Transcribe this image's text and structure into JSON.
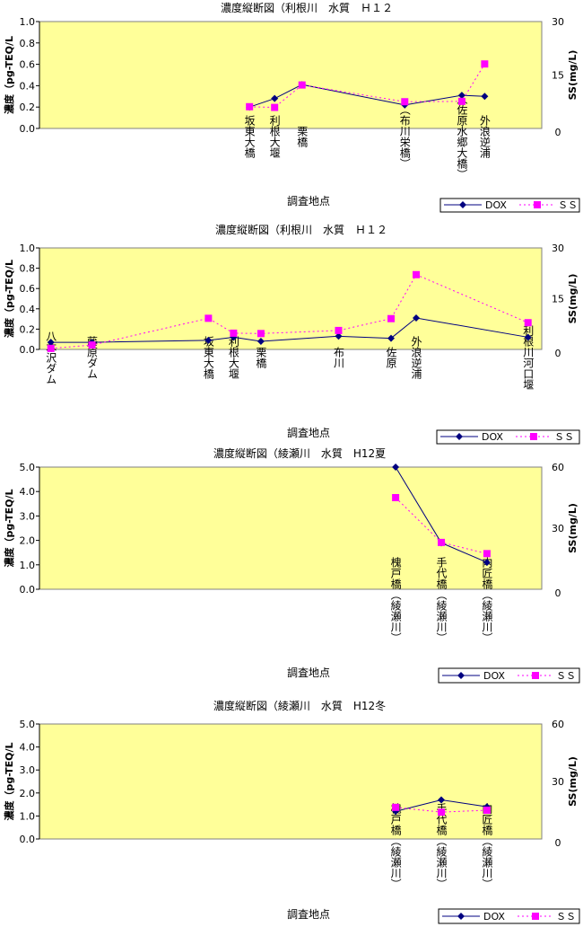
{
  "chart_data": [
    {
      "type": "line",
      "title": "濃度縦断図（利根川　水質　Ｈ１２",
      "xlabel": "調査地点",
      "ylabel": "濃度（pg-TEQ/L",
      "y2label": "SS(mg/L)",
      "ylim": [
        0,
        1.0
      ],
      "yticks": [
        "0.0",
        "0.2",
        "0.4",
        "0.6",
        "0.8",
        "1.0"
      ],
      "y2lim": [
        0,
        30
      ],
      "y2ticks": [
        "0",
        "15",
        "30"
      ],
      "plot_background": "#ffff99",
      "x": [
        9.7,
        10.8,
        12,
        16.5,
        19,
        20
      ],
      "categories": [
        "坂東大橋",
        "利根大堰",
        "栗橋",
        "（布川栄橋）",
        "（佐原水郷大橋）",
        "外浪逆浦"
      ],
      "series": [
        {
          "name": "DOX",
          "values": [
            0.2,
            0.28,
            0.41,
            0.22,
            0.31,
            0.3
          ],
          "axis": "left",
          "color": "#000080",
          "marker": "diamond",
          "dash": "solid"
        },
        {
          "name": "ＳＳ",
          "values": [
            6.1,
            5.9,
            12.2,
            7.5,
            7.6,
            18.1
          ],
          "axis": "right",
          "color": "#ff00ff",
          "marker": "square",
          "dash": "dotted"
        }
      ],
      "legend": "bottom-right"
    },
    {
      "type": "line",
      "title": "濃度縦断図（利根川　水質　Ｈ１２",
      "xlabel": "調査地点",
      "ylabel": "濃度（pg-TEQ/L",
      "y2label": "SS(mg/L)",
      "ylim": [
        0,
        1.0
      ],
      "yticks": [
        "0.0",
        "0.2",
        "0.4",
        "0.6",
        "0.8",
        "1.0"
      ],
      "y2lim": [
        0,
        30
      ],
      "y2ticks": [
        "0",
        "15",
        "30"
      ],
      "plot_background": "#ffff99",
      "x": [
        1,
        2.8,
        7.9,
        9,
        10.2,
        13.6,
        15.9,
        17,
        21.9
      ],
      "categories": [
        "八木沢ダム",
        "藤原ダム",
        "坂東大橋",
        "利根大堰",
        "栗橋",
        "布川",
        "佐原",
        "外浪逆浦",
        "利根川河口堰"
      ],
      "series": [
        {
          "name": "DOX",
          "values": [
            0.07,
            0.07,
            0.09,
            0.12,
            0.08,
            0.13,
            0.11,
            0.31,
            0.12
          ],
          "axis": "left",
          "color": "#000080",
          "marker": "diamond",
          "dash": "solid"
        },
        {
          "name": "ＳＳ",
          "values": [
            0.3,
            1.3,
            9.2,
            4.8,
            4.7,
            5.6,
            9.1,
            22.1,
            7.9
          ],
          "axis": "right",
          "color": "#ff00ff",
          "marker": "square",
          "dash": "dotted"
        }
      ],
      "legend": "bottom-right"
    },
    {
      "type": "line",
      "title": "濃度縦断図（綾瀬川　水質　H12夏",
      "xlabel": "調査地点",
      "ylabel": "濃度（pg-TEQ/L",
      "y2label": "SS(mg/L)",
      "ylim": [
        0,
        5.0
      ],
      "yticks": [
        "0.0",
        "1.0",
        "2.0",
        "3.0",
        "4.0",
        "5.0"
      ],
      "y2lim": [
        0,
        60
      ],
      "y2ticks": [
        "0",
        "30",
        "60"
      ],
      "plot_background": "#ffff99",
      "x": [
        1,
        2,
        3
      ],
      "categories": [
        "槐戸橋（綾瀬川）",
        "手代橋（綾瀬川）",
        "内匠橋（綾瀬川）"
      ],
      "series": [
        {
          "name": "DOX",
          "values": [
            5.0,
            1.9,
            1.1
          ],
          "axis": "left",
          "color": "#000080",
          "marker": "diamond",
          "dash": "solid"
        },
        {
          "name": "ＳＳ",
          "values": [
            45,
            23,
            17.5
          ],
          "axis": "right",
          "color": "#ff00ff",
          "marker": "square",
          "dash": "dotted"
        }
      ],
      "legend": "bottom-right"
    },
    {
      "type": "line",
      "title": "濃度縦断図（綾瀬川　水質　H12冬",
      "xlabel": "調査地点",
      "ylabel": "濃度（pg-TEQ/L",
      "y2label": "SS(mg/L)",
      "ylim": [
        0,
        5.0
      ],
      "yticks": [
        "0.0",
        "1.0",
        "2.0",
        "3.0",
        "4.0",
        "5.0"
      ],
      "y2lim": [
        0,
        60
      ],
      "y2ticks": [
        "0",
        "30",
        "60"
      ],
      "plot_background": "#ffff99",
      "x": [
        1,
        2,
        3
      ],
      "categories": [
        "槐戸橋（綾瀬川）",
        "手代橋（綾瀬川）",
        "内匠橋（綾瀬川）"
      ],
      "series": [
        {
          "name": "DOX",
          "values": [
            1.2,
            1.7,
            1.4
          ],
          "axis": "left",
          "color": "#000080",
          "marker": "diamond",
          "dash": "solid"
        },
        {
          "name": "ＳＳ",
          "values": [
            16.5,
            14,
            15
          ],
          "axis": "right",
          "color": "#ff00ff",
          "marker": "square",
          "dash": "dotted"
        }
      ],
      "legend": "bottom-right"
    }
  ]
}
